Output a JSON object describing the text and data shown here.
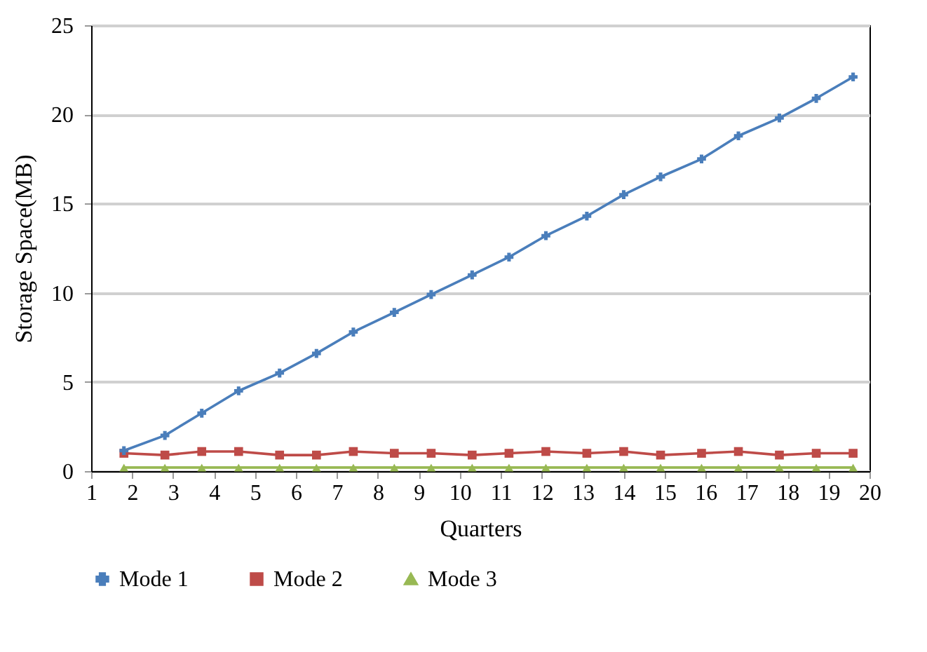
{
  "chart_data": {
    "type": "line",
    "xlabel": "Quarters",
    "ylabel": "Storage Space(MB)",
    "x": [
      1.8,
      2.8,
      3.7,
      4.6,
      5.6,
      6.5,
      7.4,
      8.4,
      9.3,
      10.3,
      11.2,
      12.1,
      13.1,
      14.0,
      14.9,
      15.9,
      16.8,
      17.8,
      18.7,
      19.6
    ],
    "xlim": [
      1,
      20
    ],
    "xticks": [
      1,
      2,
      3,
      4,
      5,
      6,
      7,
      8,
      9,
      10,
      11,
      12,
      13,
      14,
      15,
      16,
      17,
      18,
      19,
      20
    ],
    "ylim": [
      0,
      25
    ],
    "yticks": [
      0,
      5,
      10,
      15,
      20,
      25
    ],
    "grid": "y",
    "legend": "bottom",
    "series": [
      {
        "name": "Mode 1",
        "color": "#4a7ebb",
        "marker": "cross",
        "values": [
          1.15,
          2.0,
          3.25,
          4.5,
          5.5,
          6.6,
          7.8,
          8.9,
          9.9,
          11.0,
          12.0,
          13.2,
          14.3,
          15.5,
          16.5,
          17.5,
          18.8,
          19.8,
          20.9,
          22.1
        ]
      },
      {
        "name": "Mode 2",
        "color": "#be4b48",
        "marker": "square",
        "values": [
          1.0,
          0.9,
          1.1,
          1.1,
          0.9,
          0.9,
          1.1,
          1.0,
          1.0,
          0.9,
          1.0,
          1.1,
          1.0,
          1.1,
          0.9,
          1.0,
          1.1,
          0.9,
          1.0,
          1.0
        ]
      },
      {
        "name": "Mode 3",
        "color": "#98b954",
        "marker": "triangle",
        "values": [
          0.2,
          0.2,
          0.2,
          0.2,
          0.2,
          0.2,
          0.2,
          0.2,
          0.2,
          0.2,
          0.2,
          0.2,
          0.2,
          0.2,
          0.2,
          0.2,
          0.2,
          0.2,
          0.2,
          0.2
        ]
      }
    ]
  }
}
